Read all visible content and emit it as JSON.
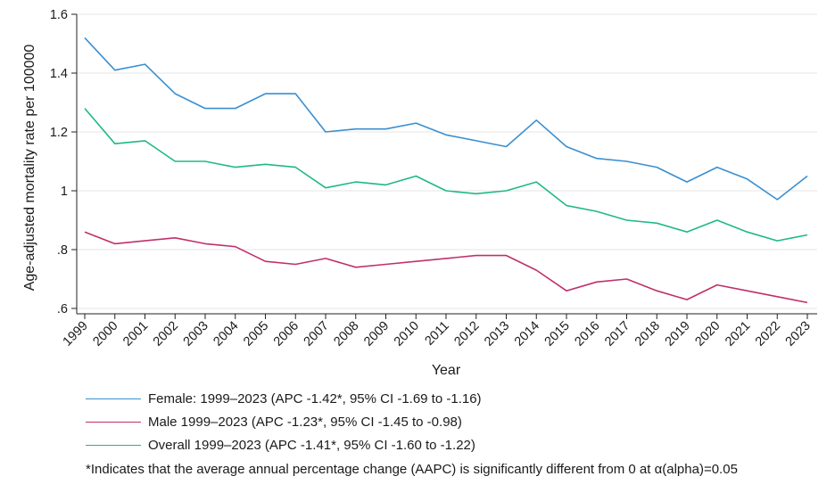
{
  "chart_data": {
    "type": "line",
    "xlabel": "Year",
    "ylabel": "Age-adjusted mortality rate per 100000",
    "x": [
      "1999",
      "2000",
      "2001",
      "2002",
      "2003",
      "2004",
      "2005",
      "2006",
      "2007",
      "2008",
      "2009",
      "2010",
      "2011",
      "2012",
      "2013",
      "2014",
      "2015",
      "2016",
      "2017",
      "2018",
      "2019",
      "2020",
      "2021",
      "2022",
      "2023"
    ],
    "ylim": [
      0.6,
      1.6
    ],
    "yticks": [
      0.6,
      0.8,
      1.0,
      1.2,
      1.4,
      1.6
    ],
    "ytick_labels": [
      ".6",
      ".8",
      "1",
      "1.2",
      "1.4",
      "1.6"
    ],
    "grid": true,
    "legend_position": "bottom",
    "series": [
      {
        "name": "Female: 1999–2023 (APC -1.42*, 95% CI -1.69 to -1.16)",
        "color": "#3a8fd0",
        "values": [
          1.52,
          1.41,
          1.43,
          1.33,
          1.28,
          1.28,
          1.33,
          1.33,
          1.2,
          1.21,
          1.21,
          1.23,
          1.19,
          1.17,
          1.15,
          1.24,
          1.15,
          1.11,
          1.1,
          1.08,
          1.03,
          1.08,
          1.04,
          0.97,
          1.05
        ]
      },
      {
        "name": "Male 1999–2023 (APC -1.23*, 95% CI -1.45 to -0.98)",
        "color": "#c0306a",
        "values": [
          0.86,
          0.82,
          0.83,
          0.84,
          0.82,
          0.81,
          0.76,
          0.75,
          0.77,
          0.74,
          0.75,
          0.76,
          0.77,
          0.78,
          0.78,
          0.73,
          0.66,
          0.69,
          0.7,
          0.66,
          0.63,
          0.68,
          0.66,
          0.64,
          0.62
        ]
      },
      {
        "name": "Overall 1999–2023 (APC -1.41*, 95% CI -1.60 to -1.22)",
        "color": "#1fb88a",
        "values": [
          1.28,
          1.16,
          1.17,
          1.1,
          1.1,
          1.08,
          1.09,
          1.08,
          1.01,
          1.03,
          1.02,
          1.05,
          1.0,
          0.99,
          1.0,
          1.03,
          0.95,
          0.93,
          0.9,
          0.89,
          0.86,
          0.9,
          0.86,
          0.83,
          0.85
        ]
      }
    ],
    "footnote": "*Indicates that the average annual percentage change (AAPC) is significantly different from 0 at α(alpha)=0.05"
  }
}
